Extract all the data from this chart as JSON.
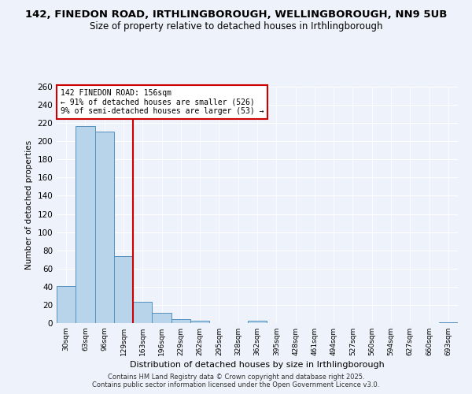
{
  "title": "142, FINEDON ROAD, IRTHLINGBOROUGH, WELLINGBOROUGH, NN9 5UB",
  "subtitle": "Size of property relative to detached houses in Irthlingborough",
  "xlabel": "Distribution of detached houses by size in Irthlingborough",
  "ylabel": "Number of detached properties",
  "bar_labels": [
    "30sqm",
    "63sqm",
    "96sqm",
    "129sqm",
    "163sqm",
    "196sqm",
    "229sqm",
    "262sqm",
    "295sqm",
    "328sqm",
    "362sqm",
    "395sqm",
    "428sqm",
    "461sqm",
    "494sqm",
    "527sqm",
    "560sqm",
    "594sqm",
    "627sqm",
    "660sqm",
    "693sqm"
  ],
  "bar_values": [
    41,
    217,
    211,
    74,
    23,
    11,
    4,
    3,
    0,
    0,
    3,
    0,
    0,
    0,
    0,
    0,
    0,
    0,
    0,
    0,
    1
  ],
  "bar_color": "#b8d4ea",
  "bar_edge_color": "#5590c0",
  "vline_x": 3.5,
  "vline_color": "#cc0000",
  "annotation_text": "142 FINEDON ROAD: 156sqm\n← 91% of detached houses are smaller (526)\n9% of semi-detached houses are larger (53) →",
  "annotation_box_color": "#ffffff",
  "annotation_box_edge": "#cc0000",
  "ylim": [
    0,
    260
  ],
  "yticks": [
    0,
    20,
    40,
    60,
    80,
    100,
    120,
    140,
    160,
    180,
    200,
    220,
    240,
    260
  ],
  "bg_color": "#eef2fa",
  "footer1": "Contains HM Land Registry data © Crown copyright and database right 2025.",
  "footer2": "Contains public sector information licensed under the Open Government Licence v3.0.",
  "title_fontsize": 9.5,
  "subtitle_fontsize": 8.5,
  "footer_fontsize": 6.0
}
